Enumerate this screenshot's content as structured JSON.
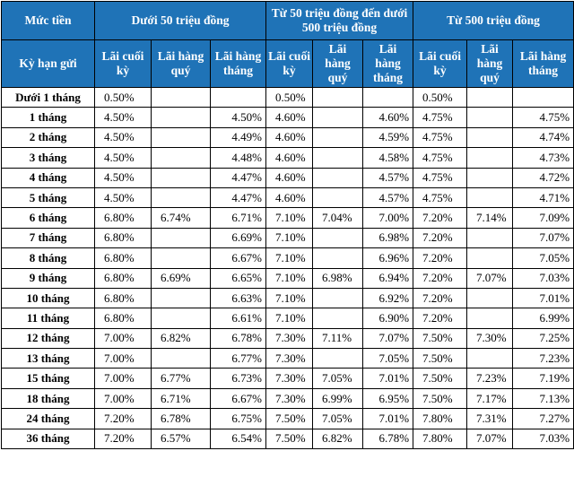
{
  "header": {
    "corner": "Mức tiền",
    "term_label": "Kỳ hạn gửi",
    "groups": [
      "Dưới 50 triệu đồng",
      "Từ 50 triệu đồng đến dưới 500 triệu đồng",
      "Từ 500 triệu đồng"
    ],
    "subheaders": [
      "Lãi cuối kỳ",
      "Lãi hàng quý",
      "Lãi hàng tháng"
    ]
  },
  "rows": [
    {
      "term": "Dưới 1 tháng",
      "vals": [
        "0.50%",
        "",
        "",
        "0.50%",
        "",
        "",
        "0.50%",
        "",
        ""
      ]
    },
    {
      "term": "1 tháng",
      "vals": [
        "4.50%",
        "",
        "4.50%",
        "4.60%",
        "",
        "4.60%",
        "4.75%",
        "",
        "4.75%"
      ]
    },
    {
      "term": "2 tháng",
      "vals": [
        "4.50%",
        "",
        "4.49%",
        "4.60%",
        "",
        "4.59%",
        "4.75%",
        "",
        "4.74%"
      ]
    },
    {
      "term": "3 tháng",
      "vals": [
        "4.50%",
        "",
        "4.48%",
        "4.60%",
        "",
        "4.58%",
        "4.75%",
        "",
        "4.73%"
      ]
    },
    {
      "term": "4 tháng",
      "vals": [
        "4.50%",
        "",
        "4.47%",
        "4.60%",
        "",
        "4.57%",
        "4.75%",
        "",
        "4.72%"
      ]
    },
    {
      "term": "5 tháng",
      "vals": [
        "4.50%",
        "",
        "4.47%",
        "4.60%",
        "",
        "4.57%",
        "4.75%",
        "",
        "4.71%"
      ]
    },
    {
      "term": "6 tháng",
      "vals": [
        "6.80%",
        "6.74%",
        "6.71%",
        "7.10%",
        "7.04%",
        "7.00%",
        "7.20%",
        "7.14%",
        "7.09%"
      ]
    },
    {
      "term": "7 tháng",
      "vals": [
        "6.80%",
        "",
        "6.69%",
        "7.10%",
        "",
        "6.98%",
        "7.20%",
        "",
        "7.07%"
      ]
    },
    {
      "term": "8 tháng",
      "vals": [
        "6.80%",
        "",
        "6.67%",
        "7.10%",
        "",
        "6.96%",
        "7.20%",
        "",
        "7.05%"
      ]
    },
    {
      "term": "9 tháng",
      "vals": [
        "6.80%",
        "6.69%",
        "6.65%",
        "7.10%",
        "6.98%",
        "6.94%",
        "7.20%",
        "7.07%",
        "7.03%"
      ]
    },
    {
      "term": "10 tháng",
      "vals": [
        "6.80%",
        "",
        "6.63%",
        "7.10%",
        "",
        "6.92%",
        "7.20%",
        "",
        "7.01%"
      ]
    },
    {
      "term": "11 tháng",
      "vals": [
        "6.80%",
        "",
        "6.61%",
        "7.10%",
        "",
        "6.90%",
        "7.20%",
        "",
        "6.99%"
      ]
    },
    {
      "term": "12 tháng",
      "vals": [
        "7.00%",
        "6.82%",
        "6.78%",
        "7.30%",
        "7.11%",
        "7.07%",
        "7.50%",
        "7.30%",
        "7.25%"
      ]
    },
    {
      "term": "13 tháng",
      "vals": [
        "7.00%",
        "",
        "6.77%",
        "7.30%",
        "",
        "7.05%",
        "7.50%",
        "",
        "7.23%"
      ]
    },
    {
      "term": "15 tháng",
      "vals": [
        "7.00%",
        "6.77%",
        "6.73%",
        "7.30%",
        "7.05%",
        "7.01%",
        "7.50%",
        "7.23%",
        "7.19%"
      ]
    },
    {
      "term": "18 tháng",
      "vals": [
        "7.00%",
        "6.71%",
        "6.67%",
        "7.30%",
        "6.99%",
        "6.95%",
        "7.50%",
        "7.17%",
        "7.13%"
      ]
    },
    {
      "term": "24 tháng",
      "vals": [
        "7.20%",
        "6.78%",
        "6.75%",
        "7.50%",
        "7.05%",
        "7.01%",
        "7.80%",
        "7.31%",
        "7.27%"
      ]
    },
    {
      "term": "36 tháng",
      "vals": [
        "7.20%",
        "6.57%",
        "6.54%",
        "7.50%",
        "6.82%",
        "6.78%",
        "7.80%",
        "7.07%",
        "7.03%"
      ]
    }
  ],
  "style": {
    "header_bg": "#1f73b7",
    "header_text": "#ffffff",
    "border": "#000000"
  }
}
